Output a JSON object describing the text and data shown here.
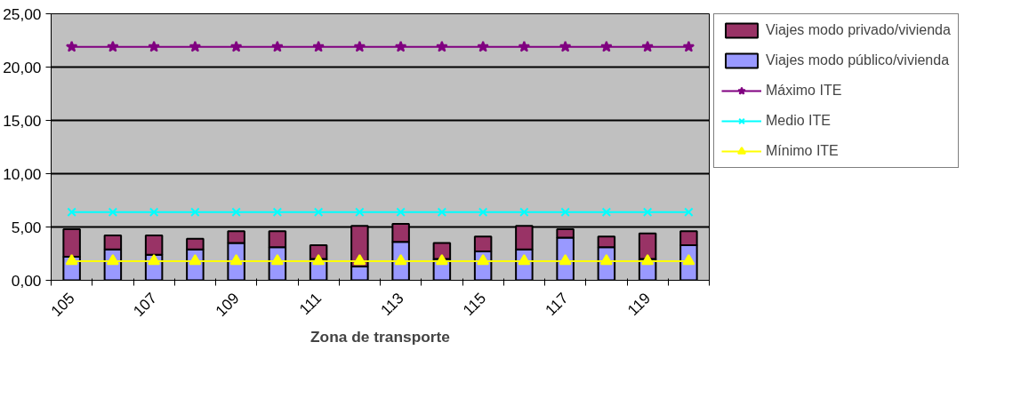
{
  "chart_data": {
    "type": "bar",
    "stacked": true,
    "xlabel": "Zona de transporte",
    "categories": [
      "105",
      null,
      "107",
      null,
      "109",
      null,
      "111",
      null,
      "113",
      null,
      "115",
      null,
      "117",
      null,
      "119",
      null
    ],
    "series": [
      {
        "name": "Viajes modo público/vivienda",
        "color": "#9999ff",
        "values": [
          2.2,
          2.9,
          2.4,
          2.9,
          3.5,
          3.1,
          2.0,
          1.3,
          3.6,
          2.0,
          2.7,
          2.9,
          4.0,
          3.1,
          2.0,
          3.3
        ]
      },
      {
        "name": "Viajes modo privado/vivienda",
        "color": "#993366",
        "values": [
          2.6,
          1.3,
          1.8,
          1.0,
          1.1,
          1.5,
          1.3,
          3.8,
          1.7,
          1.5,
          1.4,
          2.2,
          0.8,
          1.0,
          2.4,
          1.3
        ]
      },
      {
        "name": "Máximo ITE",
        "type": "line",
        "marker": "star",
        "color": "#800080",
        "values": [
          21.9,
          21.9,
          21.9,
          21.9,
          21.9,
          21.9,
          21.9,
          21.9,
          21.9,
          21.9,
          21.9,
          21.9,
          21.9,
          21.9,
          21.9,
          21.9
        ]
      },
      {
        "name": "Medio ITE",
        "type": "line",
        "marker": "cross",
        "color": "#00ffff",
        "values": [
          6.4,
          6.4,
          6.4,
          6.4,
          6.4,
          6.4,
          6.4,
          6.4,
          6.4,
          6.4,
          6.4,
          6.4,
          6.4,
          6.4,
          6.4,
          6.4
        ]
      },
      {
        "name": "Mínimo ITE",
        "type": "line",
        "marker": "triangle",
        "color": "#ffff00",
        "values": [
          1.8,
          1.8,
          1.8,
          1.8,
          1.8,
          1.8,
          1.8,
          1.8,
          1.8,
          1.8,
          1.8,
          1.8,
          1.8,
          1.8,
          1.8,
          1.8
        ]
      }
    ],
    "ylim": [
      0,
      25
    ],
    "yticks": [
      {
        "value": 0,
        "label": "0,00"
      },
      {
        "value": 5,
        "label": "5,00"
      },
      {
        "value": 10,
        "label": "10,00"
      },
      {
        "value": 15,
        "label": "15,00"
      },
      {
        "value": 20,
        "label": "20,00"
      },
      {
        "value": 25,
        "label": "25,00"
      }
    ],
    "grid": "y",
    "legend": "right"
  }
}
